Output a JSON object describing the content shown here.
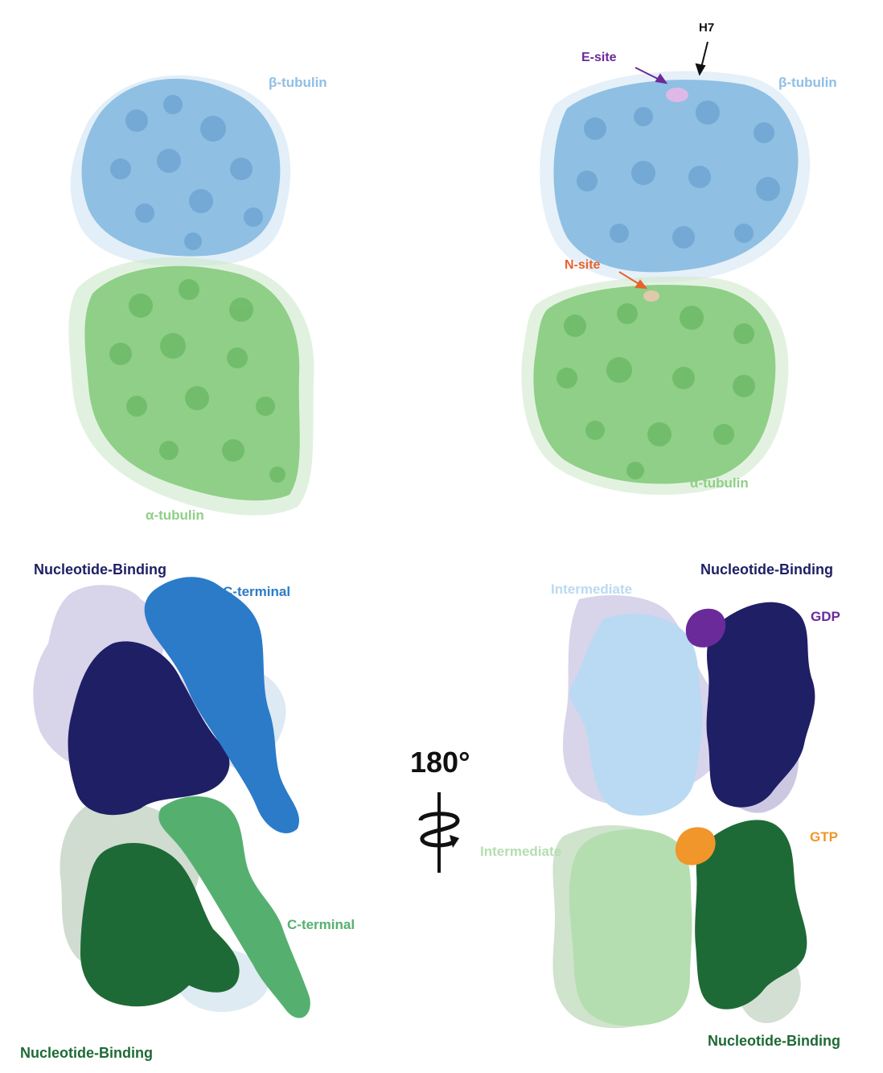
{
  "panels": {
    "top_left": {
      "beta_label": "β-tubulin",
      "alpha_label": "α-tubulin"
    },
    "top_right": {
      "beta_label": "β-tubulin",
      "alpha_label": "α-tubulin",
      "esite_label": "E-site",
      "h7_label": "H7",
      "nsite_label": "N-site"
    },
    "bottom_left": {
      "beta_nb_label": "Nucleotide-Binding",
      "beta_ct_label": "C-terminal",
      "alpha_ct_label": "C-terminal",
      "alpha_nb_label": "Nucleotide-Binding"
    },
    "bottom_right": {
      "beta_int_label": "Intermediate",
      "beta_nb_label": "Nucleotide-Binding",
      "gdp_label": "GDP",
      "gtp_label": "GTP",
      "alpha_int_label": "Intermediate",
      "alpha_nb_label": "Nucleotide-Binding"
    },
    "rotation": {
      "label": "180°"
    }
  },
  "colors": {
    "beta_density": "#8fbfe3",
    "alpha_density": "#8fcf88",
    "beta_nucleotide_binding": "#1f1f66",
    "beta_c_terminal": "#2b7bc9",
    "beta_intermediate": "#b9daf2",
    "alpha_nucleotide_binding": "#1e6a36",
    "alpha_c_terminal": "#55b070",
    "alpha_intermediate": "#b5deb0",
    "gdp": "#6b2a9a",
    "gtp": "#f0962a",
    "esite": "#6b2a9a",
    "nsite": "#e8622b",
    "background_shadow": "#d8d4ea"
  }
}
